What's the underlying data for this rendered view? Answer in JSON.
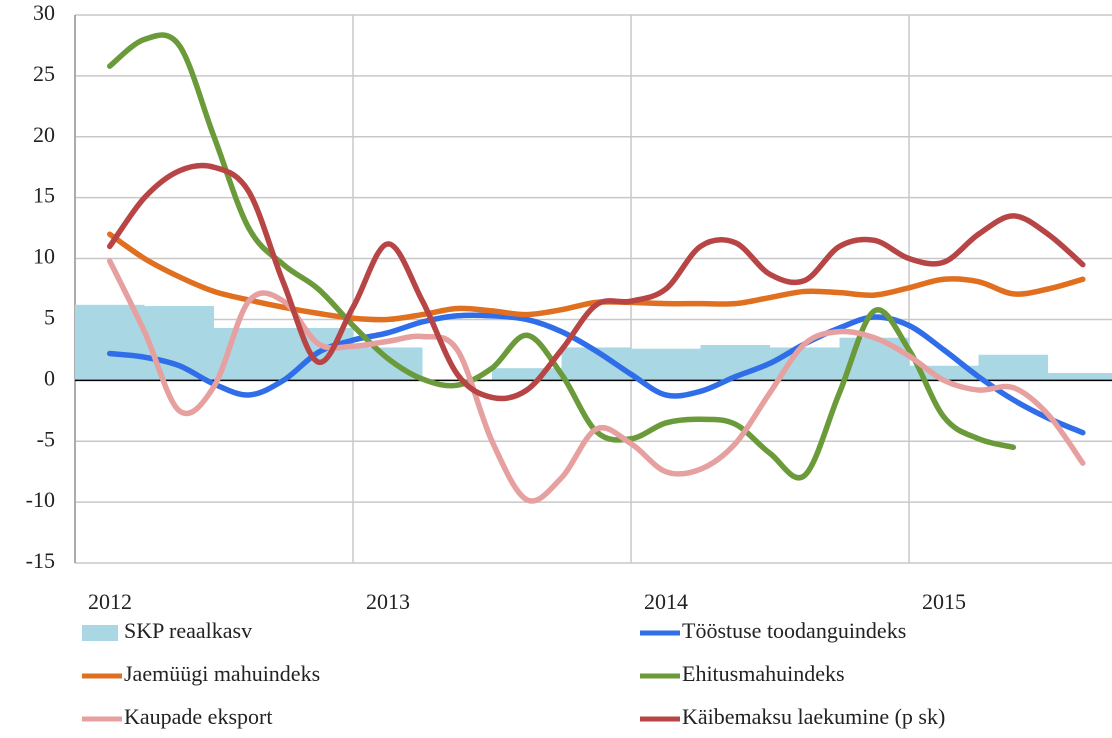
{
  "chart_data": {
    "type": "combo",
    "xlim": [
      2012,
      2015.73
    ],
    "xticks": [
      2012,
      2013,
      2014,
      2015
    ],
    "ylim": [
      -15,
      30
    ],
    "yticks": [
      -15,
      -10,
      -5,
      0,
      5,
      10,
      15,
      20,
      25,
      30
    ],
    "grid": true,
    "x": [
      2012.125,
      2012.25,
      2012.375,
      2012.5,
      2012.625,
      2012.75,
      2012.875,
      2013,
      2013.125,
      2013.25,
      2013.375,
      2013.5,
      2013.625,
      2013.75,
      2013.875,
      2014,
      2014.125,
      2014.25,
      2014.375,
      2014.5,
      2014.625,
      2014.75,
      2014.875,
      2015,
      2015.125,
      2015.25,
      2015.375,
      2015.5,
      2015.625
    ],
    "series": [
      {
        "name": "SKP reaalkasv",
        "type": "bar",
        "color": "#a9d7e4",
        "x": [
          2012,
          2012.25,
          2012.5,
          2012.75,
          2013,
          2013.25,
          2013.5,
          2013.75,
          2014,
          2014.25,
          2014.5,
          2014.75,
          2015,
          2015.25,
          2015.5
        ],
        "values": [
          6.2,
          6.1,
          4.3,
          4.3,
          2.7,
          0,
          1.0,
          2.7,
          2.6,
          2.9,
          2.7,
          3.5,
          1.2,
          2.1,
          0.6
        ]
      },
      {
        "name": "Tööstuse toodanguindeks",
        "type": "line",
        "color": "#2f6ee8",
        "values": [
          2.2,
          1.9,
          1.2,
          -0.3,
          -1.2,
          0,
          2.3,
          3.3,
          3.9,
          4.8,
          5.3,
          5.3,
          5.0,
          4.0,
          2.4,
          0.5,
          -1.2,
          -0.9,
          0.3,
          1.4,
          3.0,
          4.3,
          5.2,
          4.5,
          2.5,
          0.3,
          -1.6,
          -3.1,
          -4.3
        ]
      },
      {
        "name": "Jaemüügi mahuindeks",
        "type": "line",
        "color": "#e07020",
        "values": [
          12,
          10,
          8.5,
          7.3,
          6.6,
          6.0,
          5.5,
          5.1,
          5.0,
          5.4,
          5.9,
          5.7,
          5.4,
          5.8,
          6.4,
          6.4,
          6.3,
          6.3,
          6.3,
          6.8,
          7.3,
          7.2,
          7.0,
          7.6,
          8.3,
          8.1,
          7.1,
          7.5,
          8.3
        ]
      },
      {
        "name": "Ehitusmahuindeks",
        "type": "line",
        "color": "#6b9a3a",
        "values": [
          25.8,
          28.0,
          27.5,
          20,
          12.5,
          9.5,
          7.5,
          4.5,
          1.8,
          0.1,
          -0.4,
          1.0,
          3.7,
          0.5,
          -4.2,
          -4.8,
          -3.5,
          -3.2,
          -3.6,
          -6.0,
          -7.8,
          -1,
          5.7,
          2.5,
          -3.0,
          -4.8,
          -5.5,
          null,
          null
        ]
      },
      {
        "name": "Kaupade eksport",
        "type": "line",
        "color": "#e6a0a0",
        "values": [
          9.8,
          4,
          -2.5,
          -0.5,
          6.5,
          6.5,
          3,
          2.8,
          3.2,
          3.6,
          2.5,
          -5,
          -9.8,
          -8,
          -4,
          -5.2,
          -7.5,
          -7.3,
          -5.2,
          -1,
          3,
          4,
          3.5,
          2,
          0,
          -0.8,
          -0.6,
          -2.8,
          -6.8
        ]
      },
      {
        "name": "Käibemaksu laekumine (p sk)",
        "type": "line",
        "color": "#b84545",
        "values": [
          11,
          15,
          17.2,
          17.5,
          15.5,
          8.0,
          1.5,
          6.0,
          11.2,
          6.5,
          0.5,
          -1.4,
          -0.8,
          2.5,
          6.2,
          6.5,
          7.5,
          11.0,
          11.3,
          8.7,
          8.2,
          11,
          11.5,
          10,
          9.7,
          12,
          13.5,
          12.0,
          9.5
        ]
      }
    ]
  }
}
